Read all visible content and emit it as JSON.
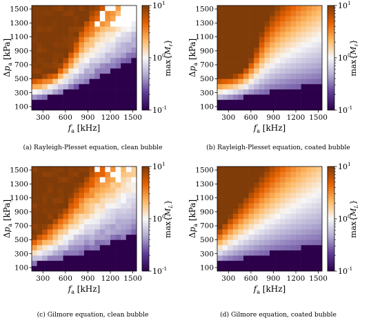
{
  "chart_data": [
    {
      "type": "heatmap",
      "caption": "(a) Rayleigh-Plesset equation, clean bubble",
      "xlabel": "f_a [kHz]",
      "ylabel": "Δp_a [kPa]",
      "colorbar_label": "max{M_ℓ}",
      "colorbar_scale": "log",
      "colorbar_range": [
        0.1,
        10
      ],
      "colorbar_ticks": [
        "10^1",
        "10^0",
        "10^-1"
      ],
      "xlim": [
        150,
        1550
      ],
      "ylim": [
        50,
        1550
      ],
      "x_ticks": [
        "300",
        "600",
        "900",
        "1200",
        "1500"
      ],
      "y_ticks": [
        "100",
        "300",
        "500",
        "700",
        "900",
        "1100",
        "1300",
        "1500"
      ],
      "colormap": [
        "#2d004b",
        "#5e3c99",
        "#b2abd2",
        "#f7f7f7",
        "#fdb863",
        "#e66101",
        "#7f3b08"
      ],
      "grid": "20 x 20 cells, values vary from ~0.1 at low pressure to ~10 at high pressure and low frequency",
      "model": {
        "thr_a": 190,
        "thr_b": 0.035,
        "thr_exp": 1.35,
        "peak_f": 420,
        "peak_k": 0.00075,
        "peak_width": 250,
        "slope": 1.8,
        "amp": 1.3,
        "has_clean_gaps": true,
        "scatter": true
      }
    },
    {
      "type": "heatmap",
      "caption": "(b) Rayleigh-Plesset equation, coated bubble",
      "xlabel": "f_a [kHz]",
      "ylabel": "Δp_a [kPa]",
      "colorbar_label": "max{M_ℓ}",
      "colorbar_scale": "log",
      "colorbar_range": [
        0.1,
        10
      ],
      "colorbar_ticks": [
        "10^1",
        "10^0",
        "10^-1"
      ],
      "xlim": [
        150,
        1550
      ],
      "ylim": [
        50,
        1550
      ],
      "x_ticks": [
        "300",
        "600",
        "900",
        "1200",
        "1500"
      ],
      "y_ticks": [
        "100",
        "300",
        "500",
        "700",
        "900",
        "1100",
        "1300",
        "1500"
      ],
      "colormap": [
        "#2d004b",
        "#5e3c99",
        "#b2abd2",
        "#f7f7f7",
        "#fdb863",
        "#e66101",
        "#7f3b08"
      ],
      "grid": "20 x 20 cells, smooth field; dark purple band below a threshold rising from ~150 kPa at 200 kHz to ~450 kPa at 1500 kHz",
      "model": {
        "thr_a": 170,
        "thr_b": 0.2,
        "thr_exp": 1.0,
        "peak_f": 400,
        "peak_k": 0.0009,
        "peak_width": 260,
        "slope": 1.5,
        "amp": 1.2,
        "has_clean_gaps": false,
        "scatter": false
      }
    },
    {
      "type": "heatmap",
      "caption": "(c) Gilmore equation, clean bubble",
      "xlabel": "f_a [kHz]",
      "ylabel": "Δp_a [kPa]",
      "colorbar_label": "max{M_L}",
      "colorbar_scale": "log",
      "colorbar_range": [
        0.1,
        10
      ],
      "colorbar_ticks": [
        "10^1",
        "10^0",
        "10^-1"
      ],
      "xlim": [
        150,
        1550
      ],
      "ylim": [
        50,
        1550
      ],
      "x_ticks": [
        "300",
        "600",
        "900",
        "1200",
        "1500"
      ],
      "y_ticks": [
        "100",
        "300",
        "500",
        "700",
        "900",
        "1100",
        "1300",
        "1500"
      ],
      "colormap": [
        "#2d004b",
        "#5e3c99",
        "#b2abd2",
        "#f7f7f7",
        "#fdb863",
        "#e66101",
        "#7f3b08"
      ],
      "grid": "20 x 20 cells; orange region upper-left, white diagonal, purple lower-right; a few white cells near upper-right",
      "model": {
        "thr_a": 150,
        "thr_b": 0.025,
        "thr_exp": 1.35,
        "peak_f": 300,
        "peak_k": 0.00038,
        "peak_width": 350,
        "slope": 1.5,
        "amp": 0.75,
        "has_clean_gaps": true,
        "scatter": true
      }
    },
    {
      "type": "heatmap",
      "caption": "(d) Gilmore equation, coated bubble",
      "xlabel": "f_a [kHz]",
      "ylabel": "Δp_a [kPa]",
      "colorbar_label": "max{M_L}",
      "colorbar_scale": "log",
      "colorbar_range": [
        0.1,
        10
      ],
      "colorbar_ticks": [
        "10^1",
        "10^0",
        "10^-1"
      ],
      "xlim": [
        150,
        1550
      ],
      "ylim": [
        50,
        1550
      ],
      "x_ticks": [
        "300",
        "600",
        "900",
        "1200",
        "1500"
      ],
      "y_ticks": [
        "100",
        "300",
        "500",
        "700",
        "900",
        "1100",
        "1300",
        "1500"
      ],
      "colormap": [
        "#2d004b",
        "#5e3c99",
        "#b2abd2",
        "#f7f7f7",
        "#fdb863",
        "#e66101",
        "#7f3b08"
      ],
      "grid": "20 x 20 cells; pale peach upper-left, white middle, purple lower-right; dark band below threshold rising to ~450 kPa",
      "model": {
        "thr_a": 170,
        "thr_b": 0.2,
        "thr_exp": 1.0,
        "peak_f": 250,
        "peak_k": 0.0002,
        "peak_width": 400,
        "slope": 1.3,
        "amp": 0.35,
        "has_clean_gaps": false,
        "scatter": false
      }
    }
  ],
  "captions": [
    "(a) Rayleigh-Plesset equation, clean bubble",
    "(b) Rayleigh-Plesset equation, coated bubble",
    "(c) Gilmore equation, clean bubble",
    "(d) Gilmore equation, coated bubble"
  ]
}
